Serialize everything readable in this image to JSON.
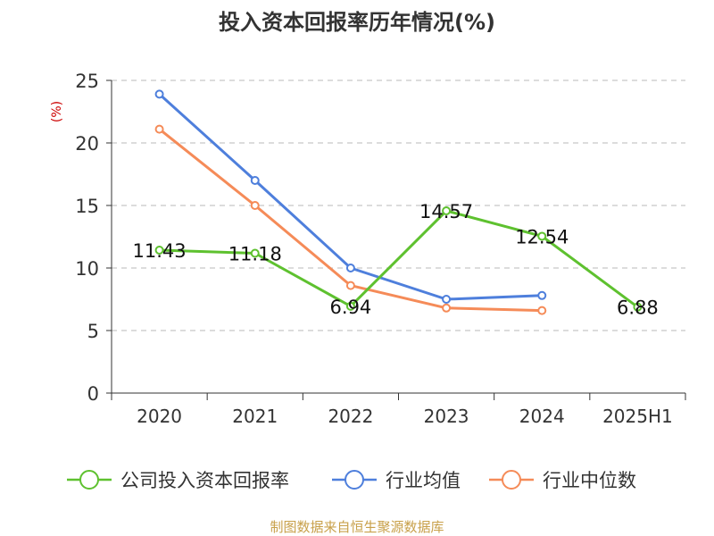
{
  "chart_data": {
    "type": "line",
    "title": "投入资本回报率历年情况(%)",
    "ylabel": "(%)",
    "xlabel": "",
    "categories": [
      "2020",
      "2021",
      "2022",
      "2023",
      "2024",
      "2025H1"
    ],
    "ylim": [
      0,
      25
    ],
    "yticks": [
      0,
      5,
      10,
      15,
      20,
      25
    ],
    "grid": "horizontal-dashed",
    "legend_position": "bottom",
    "series": [
      {
        "name": "公司投入资本回报率",
        "color": "#5ec12f",
        "values": [
          11.43,
          11.18,
          6.94,
          14.57,
          12.54,
          6.88
        ],
        "labels": [
          "11.43",
          "11.18",
          "6.94",
          "14.57",
          "12.54",
          "6.88"
        ]
      },
      {
        "name": "行业均值",
        "color": "#4e7fdc",
        "values": [
          23.9,
          17.0,
          10.0,
          7.5,
          7.8,
          null
        ]
      },
      {
        "name": "行业中位数",
        "color": "#f58b58",
        "values": [
          21.1,
          15.0,
          8.6,
          6.8,
          6.6,
          null
        ]
      }
    ]
  },
  "source": "制图数据来自恒生聚源数据库",
  "colors": {
    "ylabel": "#cc0000",
    "source": "#c8a04a",
    "grid": "#c8c8c8",
    "axis": "#333333"
  }
}
